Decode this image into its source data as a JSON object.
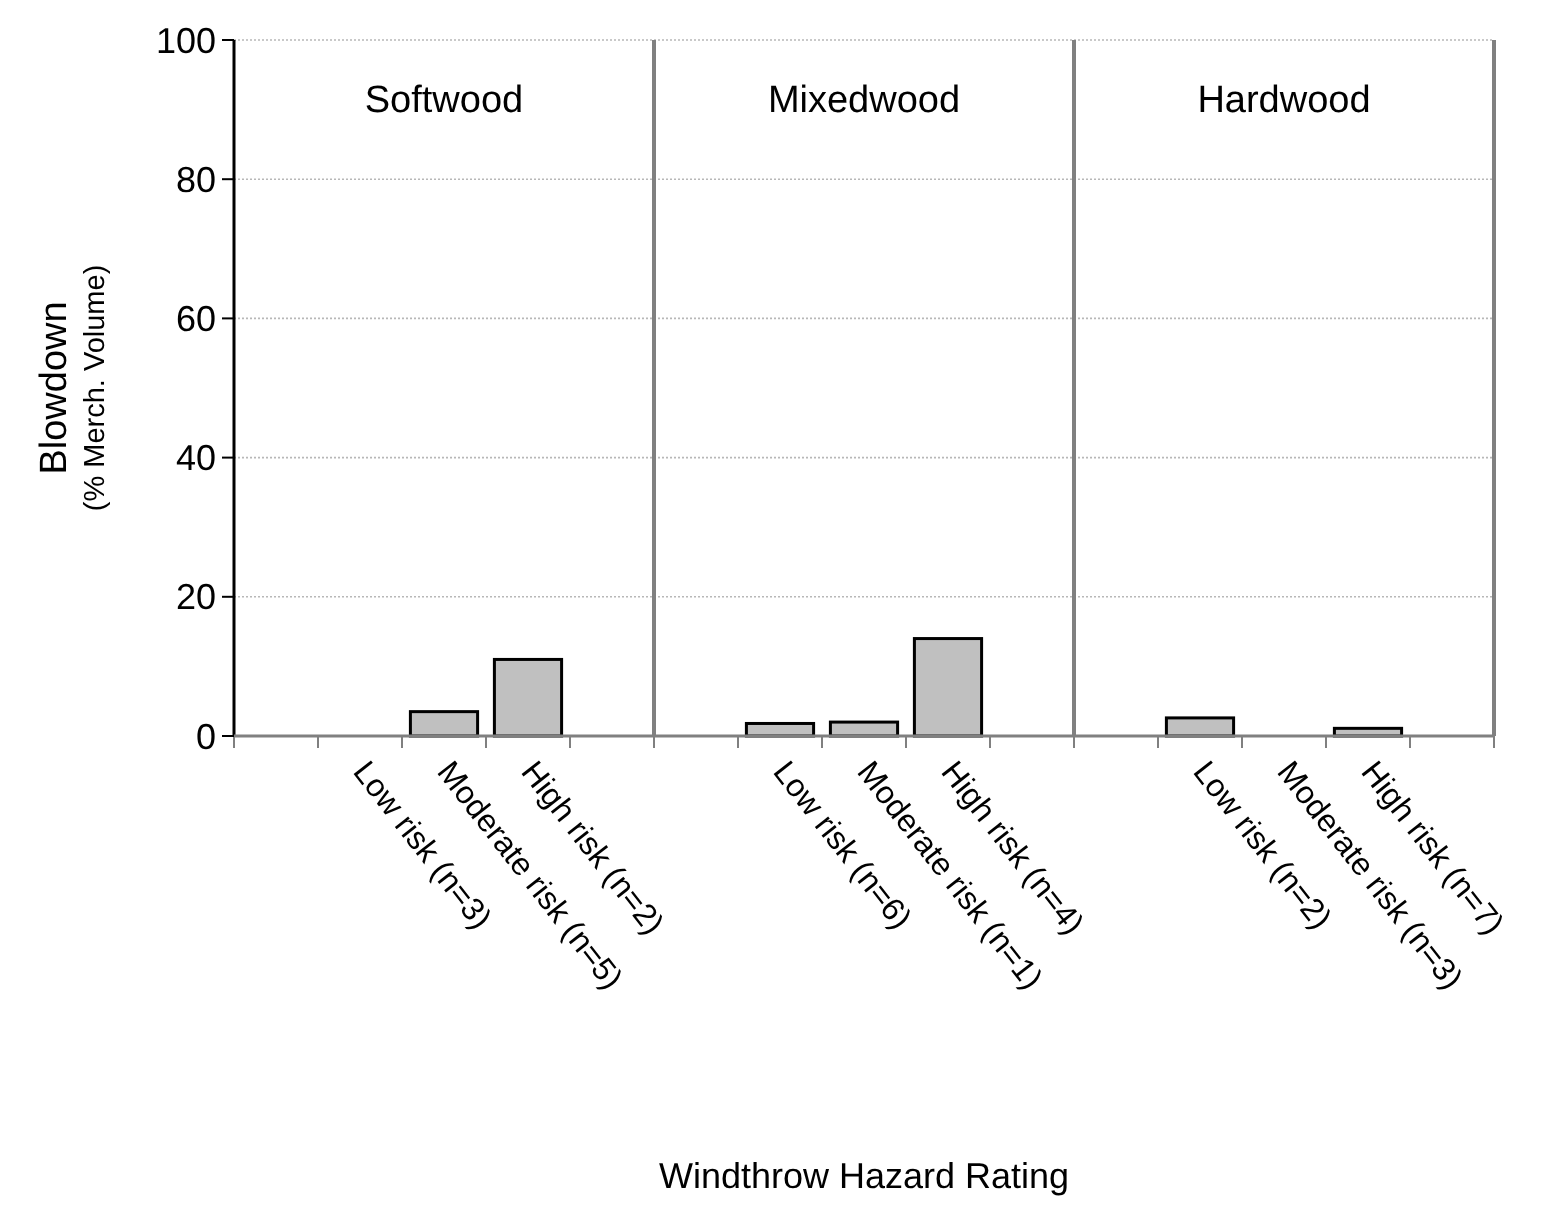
{
  "chart_data": [
    {
      "type": "bar",
      "title": "Softwood",
      "ylabel": "Blowdown (% Merch. Volume)",
      "categories": [
        null,
        "Low risk (n=3)",
        "Moderate risk (n=5)",
        "High risk (n=2)",
        null
      ],
      "values": [
        null,
        null,
        3.5,
        11,
        null
      ],
      "color": "#c0c0c0",
      "ylim": [
        0,
        100
      ],
      "yticks": [
        0,
        20,
        40,
        60,
        80,
        100
      ],
      "grid": "y"
    },
    {
      "type": "bar",
      "title": "Mixedwood",
      "xlabel": "Windthrow Hazard Rating",
      "categories": [
        null,
        "Low risk (n=6)",
        "Moderate risk (n=1)",
        "High risk (n=4)",
        null
      ],
      "values": [
        null,
        1.8,
        2,
        14,
        null
      ],
      "color": "#c0c0c0",
      "ylim": [
        0,
        100
      ],
      "yticks": [
        0,
        20,
        40,
        60,
        80,
        100
      ],
      "grid": "y",
      "tick_labels": "x"
    },
    {
      "type": "bar",
      "title": "Hardwood",
      "categories": [
        null,
        "Low risk (n=2)",
        "Moderate  risk (n=3)",
        "High risk (n=7)",
        null
      ],
      "values": [
        null,
        2.6,
        null,
        1.1,
        null
      ],
      "color": "#c0c0c0",
      "ylim": [
        0,
        100
      ],
      "yticks": [
        0,
        20,
        40,
        60,
        80,
        100
      ],
      "grid": "y",
      "tick_labels": "x"
    }
  ]
}
